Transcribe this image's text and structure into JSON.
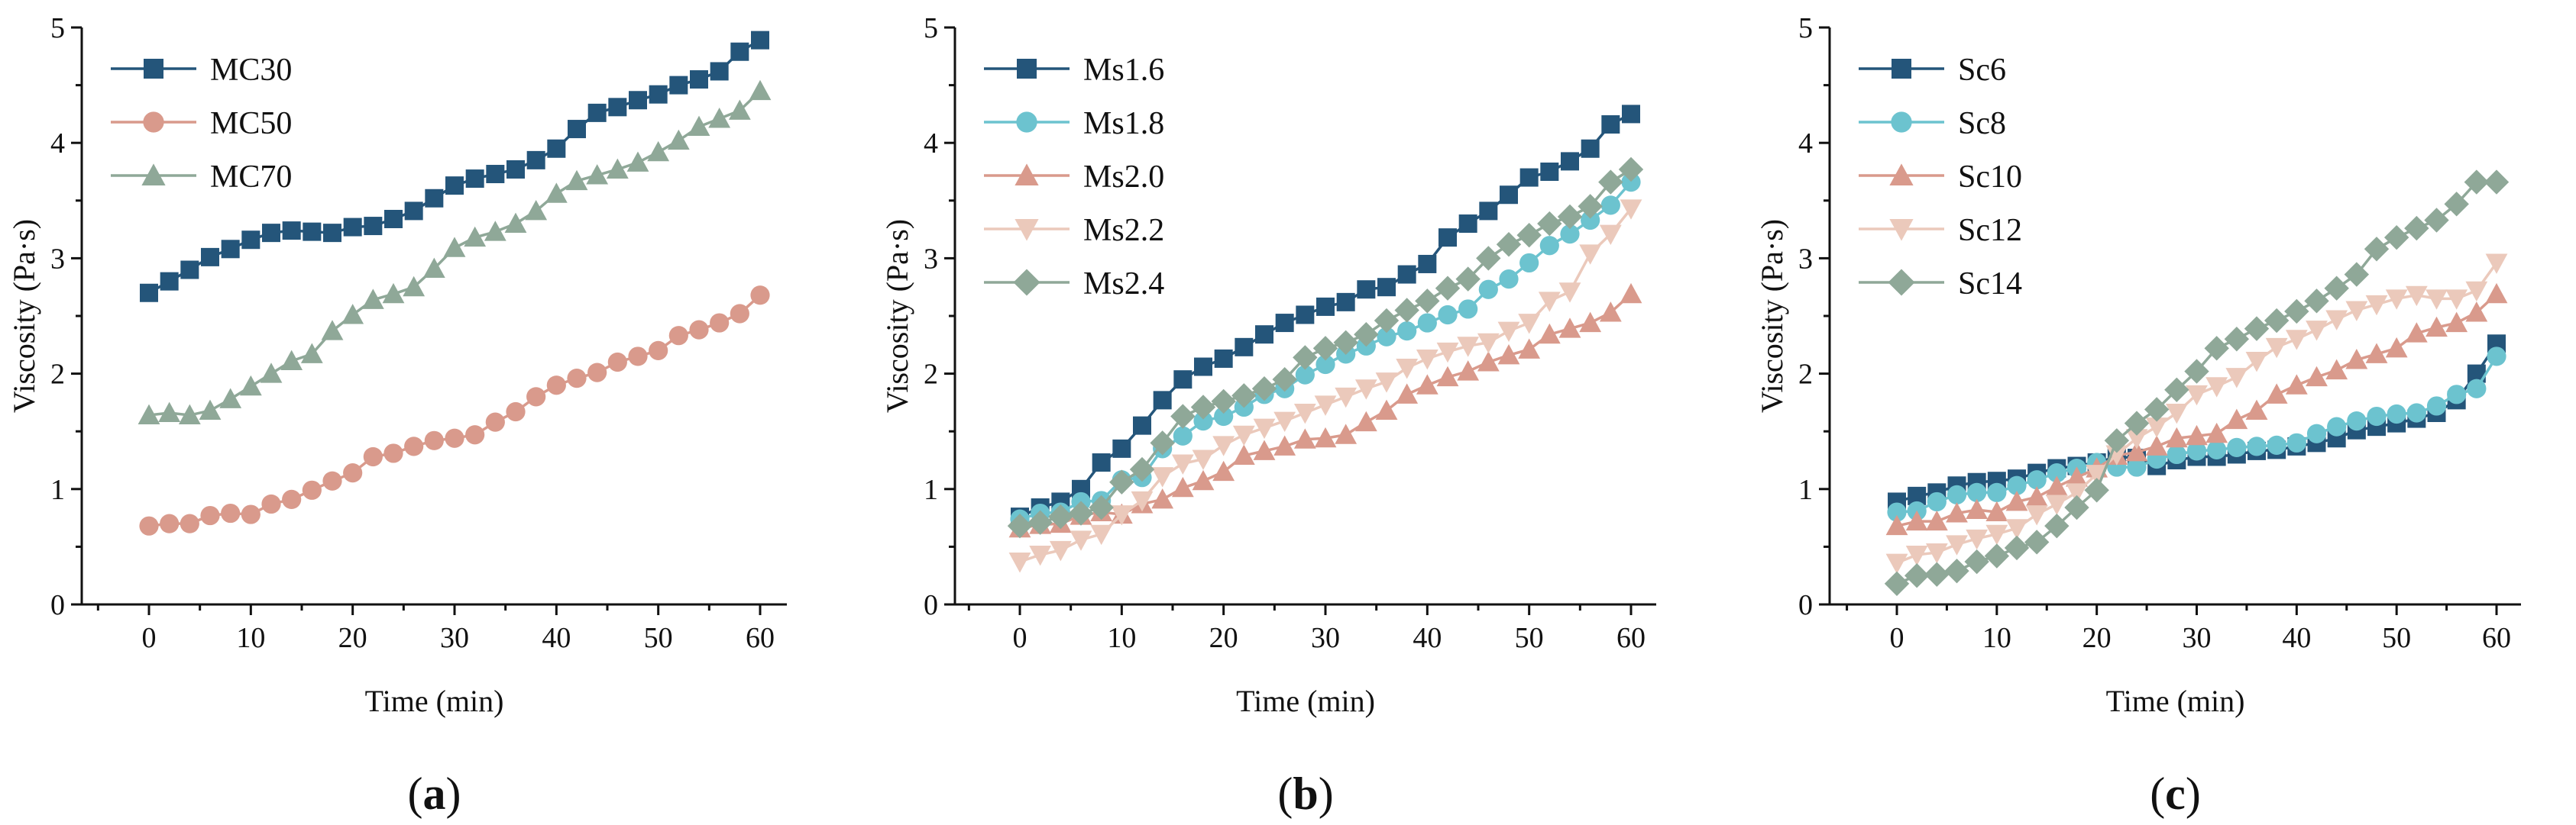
{
  "colors": {
    "navy": "#24557a",
    "cyan": "#6cc3cf",
    "salmon": "#d99a8c",
    "pale": "#ebc9bb",
    "sage": "#8fa898"
  },
  "chart_data": [
    {
      "type": "line",
      "panel_label": "a",
      "xlabel": "Time (min)",
      "ylabel": "Viscosity (Pa·s)",
      "xlim": [
        -4,
        64
      ],
      "ylim": [
        0,
        5
      ],
      "xticks": [
        0,
        10,
        20,
        30,
        40,
        50,
        60
      ],
      "yticks": [
        0,
        1,
        2,
        3,
        4,
        5
      ],
      "legend": "top-left",
      "x": [
        0,
        2,
        4,
        6,
        8,
        10,
        12,
        14,
        16,
        18,
        20,
        22,
        24,
        26,
        28,
        30,
        32,
        34,
        36,
        38,
        40,
        42,
        44,
        46,
        48,
        50,
        52,
        54,
        56,
        58,
        60
      ],
      "series": [
        {
          "name": "MC30",
          "marker": "square",
          "color": "#24557a",
          "values": [
            2.7,
            2.8,
            2.9,
            3.01,
            3.08,
            3.16,
            3.22,
            3.24,
            3.23,
            3.22,
            3.27,
            3.28,
            3.34,
            3.41,
            3.52,
            3.63,
            3.69,
            3.73,
            3.77,
            3.85,
            3.95,
            4.12,
            4.26,
            4.31,
            4.37,
            4.42,
            4.5,
            4.55,
            4.62,
            4.79,
            4.89
          ]
        },
        {
          "name": "MC50",
          "marker": "circle",
          "color": "#d99a8c",
          "values": [
            0.68,
            0.7,
            0.7,
            0.77,
            0.79,
            0.78,
            0.87,
            0.91,
            0.99,
            1.07,
            1.14,
            1.28,
            1.31,
            1.37,
            1.42,
            1.44,
            1.47,
            1.58,
            1.67,
            1.8,
            1.9,
            1.96,
            2.01,
            2.1,
            2.15,
            2.2,
            2.33,
            2.38,
            2.44,
            2.52,
            2.68
          ]
        },
        {
          "name": "MC70",
          "marker": "triangle",
          "color": "#8fa898",
          "values": [
            1.64,
            1.66,
            1.64,
            1.68,
            1.78,
            1.89,
            2.0,
            2.11,
            2.17,
            2.37,
            2.51,
            2.64,
            2.69,
            2.75,
            2.91,
            3.09,
            3.18,
            3.23,
            3.3,
            3.41,
            3.56,
            3.67,
            3.72,
            3.77,
            3.83,
            3.92,
            4.02,
            4.14,
            4.21,
            4.28,
            4.45
          ]
        }
      ]
    },
    {
      "type": "line",
      "panel_label": "b",
      "xlabel": "Time (min)",
      "ylabel": "Viscosity (Pa·s)",
      "xlim": [
        -4,
        64
      ],
      "ylim": [
        0,
        5
      ],
      "xticks": [
        0,
        10,
        20,
        30,
        40,
        50,
        60
      ],
      "yticks": [
        0,
        1,
        2,
        3,
        4,
        5
      ],
      "legend": "top-left",
      "x": [
        0,
        2,
        4,
        6,
        8,
        10,
        12,
        14,
        16,
        18,
        20,
        22,
        24,
        26,
        28,
        30,
        32,
        34,
        36,
        38,
        40,
        42,
        44,
        46,
        48,
        50,
        52,
        54,
        56,
        58,
        60
      ],
      "series": [
        {
          "name": "Ms1.6",
          "marker": "square",
          "color": "#24557a",
          "values": [
            0.76,
            0.84,
            0.89,
            1.0,
            1.23,
            1.35,
            1.55,
            1.77,
            1.95,
            2.06,
            2.13,
            2.23,
            2.34,
            2.44,
            2.51,
            2.58,
            2.62,
            2.73,
            2.75,
            2.86,
            2.95,
            3.18,
            3.3,
            3.41,
            3.55,
            3.7,
            3.75,
            3.84,
            3.95,
            4.16,
            4.25
          ]
        },
        {
          "name": "Ms1.8",
          "marker": "circle",
          "color": "#6cc3cf",
          "values": [
            0.74,
            0.79,
            0.8,
            0.89,
            0.9,
            1.08,
            1.1,
            1.35,
            1.46,
            1.59,
            1.63,
            1.71,
            1.82,
            1.87,
            1.99,
            2.08,
            2.17,
            2.24,
            2.32,
            2.37,
            2.44,
            2.51,
            2.56,
            2.73,
            2.82,
            2.96,
            3.11,
            3.21,
            3.33,
            3.46,
            3.66
          ]
        },
        {
          "name": "Ms2.0",
          "marker": "triangle",
          "color": "#d99a8c",
          "values": [
            0.66,
            0.69,
            0.7,
            0.77,
            0.8,
            0.78,
            0.87,
            0.91,
            1.01,
            1.07,
            1.15,
            1.29,
            1.33,
            1.37,
            1.43,
            1.44,
            1.47,
            1.58,
            1.68,
            1.82,
            1.9,
            1.97,
            2.02,
            2.1,
            2.16,
            2.21,
            2.34,
            2.39,
            2.44,
            2.53,
            2.69
          ]
        },
        {
          "name": "Ms2.2",
          "marker": "triangle-down",
          "color": "#ebc9bb",
          "values": [
            0.37,
            0.43,
            0.47,
            0.56,
            0.61,
            0.78,
            0.9,
            1.11,
            1.22,
            1.26,
            1.38,
            1.47,
            1.53,
            1.59,
            1.66,
            1.73,
            1.8,
            1.87,
            1.93,
            2.05,
            2.13,
            2.19,
            2.24,
            2.27,
            2.37,
            2.44,
            2.63,
            2.71,
            3.04,
            3.21,
            3.43
          ]
        },
        {
          "name": "Ms2.4",
          "marker": "diamond",
          "color": "#8fa898",
          "values": [
            0.68,
            0.71,
            0.76,
            0.79,
            0.84,
            1.06,
            1.17,
            1.4,
            1.63,
            1.71,
            1.76,
            1.81,
            1.87,
            1.95,
            2.14,
            2.22,
            2.27,
            2.34,
            2.46,
            2.55,
            2.63,
            2.74,
            2.82,
            3.0,
            3.12,
            3.2,
            3.3,
            3.36,
            3.45,
            3.66,
            3.77
          ]
        }
      ]
    },
    {
      "type": "line",
      "panel_label": "c",
      "xlabel": "Time (min)",
      "ylabel": "Viscosity (Pa·s)",
      "xlim": [
        -4,
        64
      ],
      "ylim": [
        0,
        5
      ],
      "xticks": [
        0,
        10,
        20,
        30,
        40,
        50,
        60
      ],
      "yticks": [
        0,
        1,
        2,
        3,
        4,
        5
      ],
      "legend": "top-left",
      "x": [
        0,
        2,
        4,
        6,
        8,
        10,
        12,
        14,
        16,
        18,
        20,
        22,
        24,
        26,
        28,
        30,
        32,
        34,
        36,
        38,
        40,
        42,
        44,
        46,
        48,
        50,
        52,
        54,
        56,
        58,
        60
      ],
      "series": [
        {
          "name": "Sc6",
          "marker": "square",
          "color": "#24557a",
          "values": [
            0.89,
            0.94,
            0.97,
            1.03,
            1.06,
            1.07,
            1.09,
            1.14,
            1.18,
            1.2,
            1.23,
            1.28,
            1.27,
            1.2,
            1.25,
            1.28,
            1.28,
            1.3,
            1.33,
            1.34,
            1.37,
            1.4,
            1.44,
            1.51,
            1.54,
            1.57,
            1.61,
            1.66,
            1.77,
            2.0,
            2.26
          ]
        },
        {
          "name": "Sc8",
          "marker": "circle",
          "color": "#6cc3cf",
          "values": [
            0.8,
            0.81,
            0.89,
            0.95,
            0.97,
            0.97,
            1.03,
            1.08,
            1.14,
            1.18,
            1.23,
            1.19,
            1.19,
            1.26,
            1.3,
            1.33,
            1.34,
            1.36,
            1.37,
            1.38,
            1.4,
            1.48,
            1.54,
            1.59,
            1.63,
            1.65,
            1.66,
            1.72,
            1.82,
            1.87,
            2.15
          ]
        },
        {
          "name": "Sc10",
          "marker": "triangle",
          "color": "#d99a8c",
          "values": [
            0.68,
            0.72,
            0.72,
            0.79,
            0.82,
            0.8,
            0.89,
            0.93,
            1.02,
            1.1,
            1.18,
            1.29,
            1.32,
            1.37,
            1.44,
            1.46,
            1.48,
            1.6,
            1.68,
            1.82,
            1.9,
            1.97,
            2.03,
            2.12,
            2.17,
            2.22,
            2.35,
            2.4,
            2.44,
            2.53,
            2.69
          ]
        },
        {
          "name": "Sc12",
          "marker": "triangle-down",
          "color": "#ebc9bb",
          "values": [
            0.36,
            0.43,
            0.45,
            0.52,
            0.57,
            0.61,
            0.66,
            0.78,
            0.87,
            0.97,
            1.13,
            1.3,
            1.44,
            1.54,
            1.66,
            1.82,
            1.89,
            1.97,
            2.11,
            2.23,
            2.3,
            2.38,
            2.47,
            2.55,
            2.6,
            2.65,
            2.68,
            2.65,
            2.65,
            2.72,
            2.96
          ]
        },
        {
          "name": "Sc14",
          "marker": "diamond",
          "color": "#8fa898",
          "values": [
            0.18,
            0.25,
            0.26,
            0.29,
            0.37,
            0.42,
            0.49,
            0.54,
            0.68,
            0.84,
            0.99,
            1.42,
            1.57,
            1.69,
            1.86,
            2.02,
            2.22,
            2.3,
            2.39,
            2.46,
            2.54,
            2.63,
            2.74,
            2.86,
            3.08,
            3.18,
            3.26,
            3.33,
            3.47,
            3.66,
            3.66
          ]
        }
      ]
    }
  ]
}
